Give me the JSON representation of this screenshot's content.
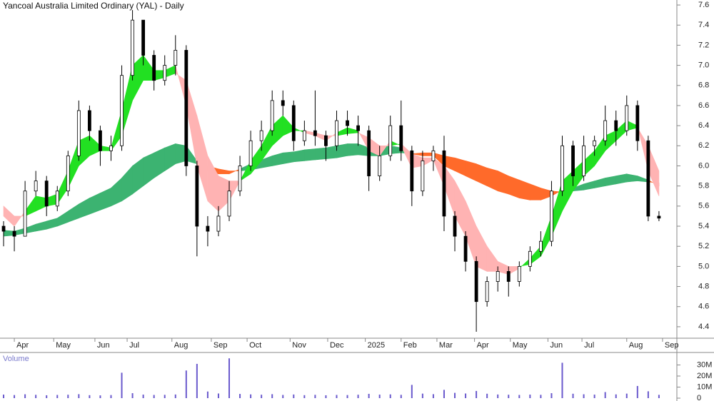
{
  "chart_data": {
    "type": "candlestick",
    "title": "Yancoal Australia Limited Ordinary (YAL) - Daily",
    "x": [
      0,
      6,
      12,
      18,
      24,
      30,
      36,
      42,
      48,
      54,
      60,
      66,
      72,
      78,
      84,
      90,
      96,
      102,
      108,
      114,
      120,
      126,
      132,
      138,
      144,
      150,
      156,
      162,
      168,
      174,
      180,
      186,
      192,
      198,
      204,
      210,
      216,
      222,
      228,
      234,
      240,
      246,
      252,
      258,
      264,
      270,
      276,
      282,
      288,
      294,
      300,
      306,
      312,
      318,
      324,
      330,
      336,
      342,
      348,
      354,
      360,
      366
    ],
    "xlim": [
      -2,
      376
    ],
    "xticks": [
      {
        "value": 6,
        "label": "Apr"
      },
      {
        "value": 28,
        "label": "May"
      },
      {
        "value": 51,
        "label": "Jun"
      },
      {
        "value": 69,
        "label": "Jul"
      },
      {
        "value": 94,
        "label": "Aug"
      },
      {
        "value": 116,
        "label": "Sep"
      },
      {
        "value": 136,
        "label": "Oct"
      },
      {
        "value": 160,
        "label": "Nov"
      },
      {
        "value": 181,
        "label": "Dec"
      },
      {
        "value": 202,
        "label": "2025"
      },
      {
        "value": 222,
        "label": "Feb"
      },
      {
        "value": 242,
        "label": "Mar"
      },
      {
        "value": 263,
        "label": "Apr"
      },
      {
        "value": 283,
        "label": "May"
      },
      {
        "value": 304,
        "label": "Jun"
      },
      {
        "value": 323,
        "label": "Jul"
      },
      {
        "value": 348,
        "label": "Aug"
      },
      {
        "value": 368,
        "label": "Sep"
      }
    ],
    "open": [
      5.4,
      5.35,
      5.3,
      5.75,
      5.85,
      5.6,
      5.75,
      6.1,
      6.55,
      6.35,
      6.15,
      6.2,
      6.9,
      7.45,
      7.1,
      6.85,
      7.0,
      7.15,
      6.0,
      5.4,
      5.35,
      5.5,
      5.75,
      6.0,
      6.25,
      6.35,
      6.65,
      6.6,
      6.25,
      6.35,
      6.3,
      6.2,
      6.45,
      6.4,
      6.35,
      5.9,
      6.1,
      6.4,
      6.15,
      5.75,
      6.05,
      6.15,
      5.5,
      5.3,
      5.05,
      4.65,
      4.85,
      4.95,
      4.85,
      5.0,
      5.15,
      5.25,
      5.75,
      6.2,
      5.9,
      6.2,
      6.25,
      6.45,
      6.35,
      6.6,
      6.25,
      5.5
    ],
    "high": [
      5.45,
      5.4,
      5.85,
      5.95,
      5.9,
      5.8,
      6.15,
      6.65,
      6.6,
      6.4,
      6.3,
      7.0,
      7.55,
      7.45,
      7.15,
      7.1,
      7.3,
      7.2,
      6.05,
      5.5,
      5.6,
      5.85,
      6.1,
      6.35,
      6.45,
      6.75,
      6.75,
      6.65,
      6.45,
      6.75,
      6.35,
      6.55,
      6.55,
      6.5,
      6.4,
      6.2,
      6.5,
      6.65,
      6.2,
      6.15,
      6.2,
      6.3,
      5.55,
      5.35,
      5.1,
      4.9,
      5.0,
      5.0,
      5.05,
      5.2,
      5.35,
      5.85,
      6.3,
      6.25,
      6.3,
      6.3,
      6.6,
      6.55,
      6.7,
      6.65,
      6.3,
      5.55
    ],
    "low": [
      5.2,
      5.15,
      5.3,
      5.7,
      5.5,
      5.55,
      5.7,
      6.05,
      6.25,
      6.0,
      6.05,
      6.15,
      6.85,
      7.0,
      6.75,
      6.8,
      6.9,
      5.9,
      5.1,
      5.2,
      5.3,
      5.45,
      5.7,
      5.95,
      6.15,
      6.3,
      6.5,
      6.15,
      6.2,
      6.2,
      6.05,
      6.15,
      6.3,
      6.2,
      5.75,
      5.85,
      6.05,
      6.05,
      5.6,
      5.7,
      5.95,
      5.35,
      5.15,
      4.95,
      4.35,
      4.6,
      4.75,
      4.7,
      4.8,
      4.95,
      5.1,
      5.2,
      5.7,
      5.8,
      5.85,
      6.1,
      6.2,
      6.2,
      6.3,
      6.15,
      5.45,
      5.45
    ],
    "close": [
      5.35,
      5.3,
      5.75,
      5.85,
      5.6,
      5.75,
      6.1,
      6.55,
      6.35,
      6.15,
      6.2,
      6.9,
      7.45,
      7.1,
      6.85,
      7.0,
      7.15,
      6.0,
      5.4,
      5.35,
      5.5,
      5.75,
      6.0,
      6.25,
      6.35,
      6.65,
      6.6,
      6.25,
      6.35,
      6.3,
      6.2,
      6.45,
      6.4,
      6.35,
      5.9,
      6.1,
      6.4,
      6.15,
      5.75,
      6.05,
      6.15,
      5.5,
      5.3,
      5.05,
      4.65,
      4.85,
      4.95,
      4.85,
      5.0,
      5.15,
      5.25,
      5.75,
      6.2,
      5.9,
      6.2,
      6.25,
      6.45,
      6.35,
      6.6,
      6.25,
      5.5,
      5.48
    ],
    "candle_colors": {
      "up": "#ffffff",
      "down": "#000000",
      "outline": "#000000"
    },
    "ylim": [
      4.3,
      7.65
    ],
    "yticks": [
      7.6,
      7.4,
      7.2,
      {
        "value": 7,
        "label": "7.0"
      },
      6.8,
      6.6,
      6.4,
      6.2,
      {
        "value": 6,
        "label": "6.0"
      },
      5.8,
      5.6,
      5.4,
      5.2,
      {
        "value": 5,
        "label": "5.0"
      },
      4.8,
      4.6,
      4.4
    ],
    "ribbons": [
      {
        "up_color": "#3cb371",
        "down_color": "#ff6a2a",
        "fast": [
          5.36,
          5.35,
          5.38,
          5.42,
          5.45,
          5.48,
          5.55,
          5.62,
          5.68,
          5.73,
          5.78,
          5.88,
          6.0,
          6.08,
          6.13,
          6.18,
          6.22,
          6.2,
          6.05,
          5.95,
          5.92,
          5.92,
          5.97,
          6.02,
          6.06,
          6.1,
          6.13,
          6.14,
          6.16,
          6.17,
          6.18,
          6.2,
          6.22,
          6.22,
          6.18,
          6.18,
          6.2,
          6.18,
          6.12,
          6.1,
          6.1,
          6.0,
          5.95,
          5.9,
          5.85,
          5.8,
          5.75,
          5.72,
          5.68,
          5.66,
          5.66,
          5.7,
          5.76,
          5.78,
          5.82,
          5.85,
          5.88,
          5.9,
          5.92,
          5.9,
          5.86,
          5.8
        ],
        "slow": [
          5.3,
          5.31,
          5.33,
          5.35,
          5.37,
          5.4,
          5.44,
          5.48,
          5.52,
          5.56,
          5.6,
          5.65,
          5.72,
          5.8,
          5.88,
          5.95,
          6.02,
          6.05,
          6.02,
          6.0,
          5.97,
          5.95,
          5.95,
          5.96,
          5.98,
          6.0,
          6.02,
          6.04,
          6.05,
          6.06,
          6.07,
          6.08,
          6.1,
          6.11,
          6.1,
          6.1,
          6.12,
          6.13,
          6.12,
          6.13,
          6.13,
          6.1,
          6.08,
          6.05,
          6.02,
          5.98,
          5.95,
          5.9,
          5.86,
          5.82,
          5.78,
          5.75,
          5.74,
          5.75,
          5.76,
          5.78,
          5.8,
          5.82,
          5.84,
          5.85,
          5.84,
          5.83
        ]
      },
      {
        "up_color": "#22e022",
        "down_color": "#ffb3b3",
        "fast": [
          5.5,
          5.4,
          5.55,
          5.7,
          5.68,
          5.72,
          5.95,
          6.25,
          6.3,
          6.2,
          6.18,
          6.55,
          7.0,
          7.1,
          6.95,
          6.95,
          7.0,
          6.6,
          6.0,
          5.65,
          5.55,
          5.65,
          5.85,
          6.05,
          6.2,
          6.4,
          6.5,
          6.38,
          6.33,
          6.3,
          6.25,
          6.33,
          6.38,
          6.35,
          6.15,
          6.1,
          6.25,
          6.2,
          5.98,
          6.0,
          6.06,
          5.8,
          5.5,
          5.3,
          5.0,
          4.95,
          4.95,
          4.92,
          4.98,
          5.08,
          5.2,
          5.5,
          5.85,
          5.95,
          6.05,
          6.15,
          6.3,
          6.35,
          6.45,
          6.4,
          5.95,
          5.7
        ],
        "slow": [
          5.6,
          5.5,
          5.5,
          5.55,
          5.6,
          5.62,
          5.78,
          6.0,
          6.1,
          6.15,
          6.15,
          6.3,
          6.65,
          6.85,
          6.85,
          6.88,
          6.92,
          6.85,
          6.5,
          6.1,
          5.9,
          5.85,
          5.85,
          5.92,
          6.05,
          6.2,
          6.3,
          6.35,
          6.35,
          6.33,
          6.3,
          6.3,
          6.32,
          6.33,
          6.28,
          6.2,
          6.2,
          6.22,
          6.12,
          6.08,
          6.08,
          6.0,
          5.85,
          5.65,
          5.4,
          5.2,
          5.05,
          5.0,
          5.0,
          5.02,
          5.1,
          5.3,
          5.55,
          5.75,
          5.9,
          6.0,
          6.15,
          6.25,
          6.35,
          6.38,
          6.2,
          5.95
        ]
      }
    ],
    "volume": {
      "label": "Volume",
      "color": "#6a5acd",
      "values": [
        3200000,
        2800000,
        3500000,
        3000000,
        2600000,
        2900000,
        3100000,
        3600000,
        2700000,
        2500000,
        2800000,
        23000000,
        4500000,
        3200000,
        2900000,
        3000000,
        3300000,
        25000000,
        31000000,
        6000000,
        4200000,
        36000000,
        3800000,
        3400000,
        3100000,
        3600000,
        2900000,
        3300000,
        2700000,
        3000000,
        2600000,
        2900000,
        2800000,
        3100000,
        3900000,
        3200000,
        3400000,
        3000000,
        12000000,
        4100000,
        3600000,
        7500000,
        4800000,
        4200000,
        6500000,
        4000000,
        3300000,
        3100000,
        2900000,
        3200000,
        3000000,
        4500000,
        32000000,
        4000000,
        3500000,
        3200000,
        5500000,
        3400000,
        4100000,
        11000000,
        6200000,
        3000000
      ],
      "ylim": [
        0,
        40000000
      ],
      "yticks": [
        {
          "value": 30000000,
          "label": "30M"
        },
        {
          "value": 20000000,
          "label": "20M"
        },
        {
          "value": 10000000,
          "label": "10M"
        },
        0
      ]
    }
  }
}
